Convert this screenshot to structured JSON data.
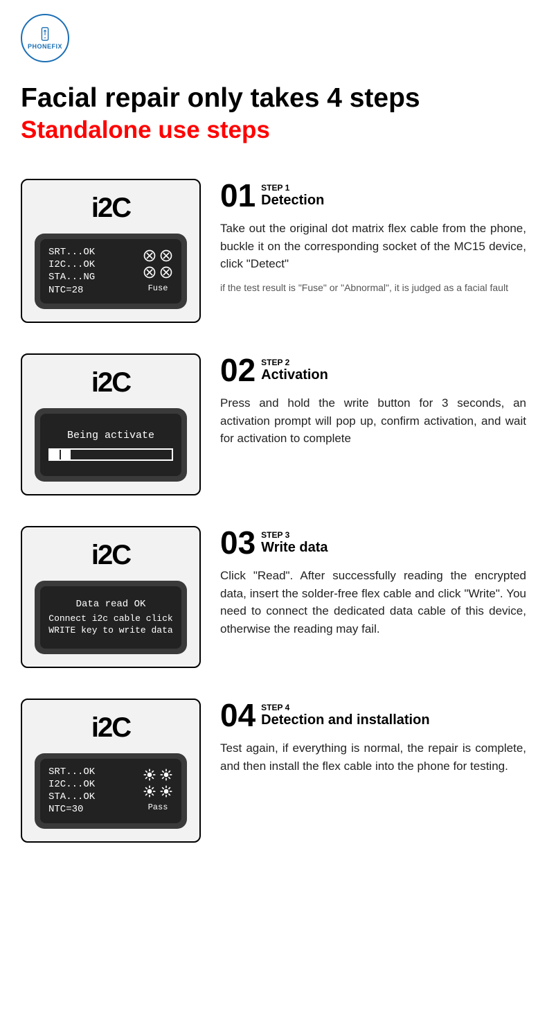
{
  "logo": {
    "brand": "PHONEFIX"
  },
  "titles": {
    "main": "Facial repair only takes 4 steps",
    "sub": "Standalone use steps"
  },
  "device_brand": "i2C",
  "colors": {
    "accent_red": "#ff0000",
    "logo_blue": "#1b6fb5",
    "screen_bg": "#222222",
    "screen_frame": "#3a3a3a",
    "card_bg": "#f2f2f2",
    "text": "#000000",
    "note_text": "#555555"
  },
  "steps": [
    {
      "num": "01",
      "label": "STEP 1",
      "title": "Detection",
      "body": "Take out the original dot matrix flex cable from the phone, buckle it on the corresponding socket of the MC15 device, click \"Detect\"",
      "note": "if the test result is \"Fuse\" or \"Abnormal\", it is judged as a facial fault",
      "screen": {
        "type": "status_grid",
        "lines": [
          "SRT...OK",
          "I2C...OK",
          "STA...NG",
          "NTC=28"
        ],
        "icon_type": "cross",
        "bottom_label": "Fuse"
      }
    },
    {
      "num": "02",
      "label": "STEP 2",
      "title": "Activation",
      "body": "Press and hold the write button for 3 seconds, an activation prompt will pop up, confirm activation, and wait for activation to complete",
      "note": "",
      "screen": {
        "type": "progress",
        "label": "Being activate",
        "segments": 2
      }
    },
    {
      "num": "03",
      "label": "STEP 3",
      "title": "Write data",
      "body": "Click \"Read\". After successfully reading the encrypted data, insert the solder-free flex cable and click \"Write\". You need to connect the dedicated data cable of this device, otherwise the reading may fail.",
      "note": "",
      "screen": {
        "type": "message",
        "line1": "Data read OK",
        "line2": "Connect i2c cable click WRITE key to write data"
      }
    },
    {
      "num": "04",
      "label": "STEP 4",
      "title": "Detection and installation",
      "body": "Test again, if everything is normal, the repair is complete, and then install the flex cable into the phone for testing.",
      "note": "",
      "screen": {
        "type": "status_grid",
        "lines": [
          "SRT...OK",
          "I2C...OK",
          "STA...OK",
          "NTC=30"
        ],
        "icon_type": "sun",
        "bottom_label": "Pass"
      }
    }
  ]
}
